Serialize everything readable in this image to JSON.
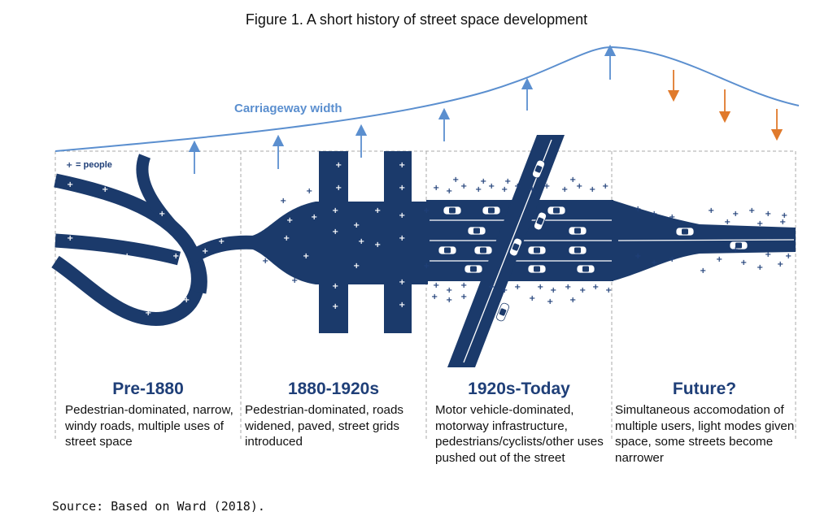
{
  "figure": {
    "title": "Figure 1. A short history of street space development",
    "curve_label": "Carriageway width",
    "legend_symbol": "+",
    "legend_text": "= people"
  },
  "eras": [
    {
      "title": "Pre-1880",
      "description": "Pedestrian-dominated, narrow, windy roads, multiple uses of street space"
    },
    {
      "title": "1880-1920s",
      "description": "Pedestrian-dominated, roads widened, paved, street grids introduced"
    },
    {
      "title": "1920s-Today",
      "description": "Motor vehicle-dominated, motorway infrastructure, pedestrians/cyclists/other uses pushed out of the street"
    },
    {
      "title": "Future?",
      "description": "Simultaneous accomodation of multiple users, light modes given space, some streets become narrower"
    }
  ],
  "source": "Source: Based on Ward (2018).",
  "colors": {
    "road": "#1b3a6b",
    "curve": "#5b8fcf",
    "increase_arrow": "#5b8fcf",
    "decrease_arrow": "#e07a2c",
    "era_title": "#1f3f78",
    "divider": "#aaaaaa"
  }
}
